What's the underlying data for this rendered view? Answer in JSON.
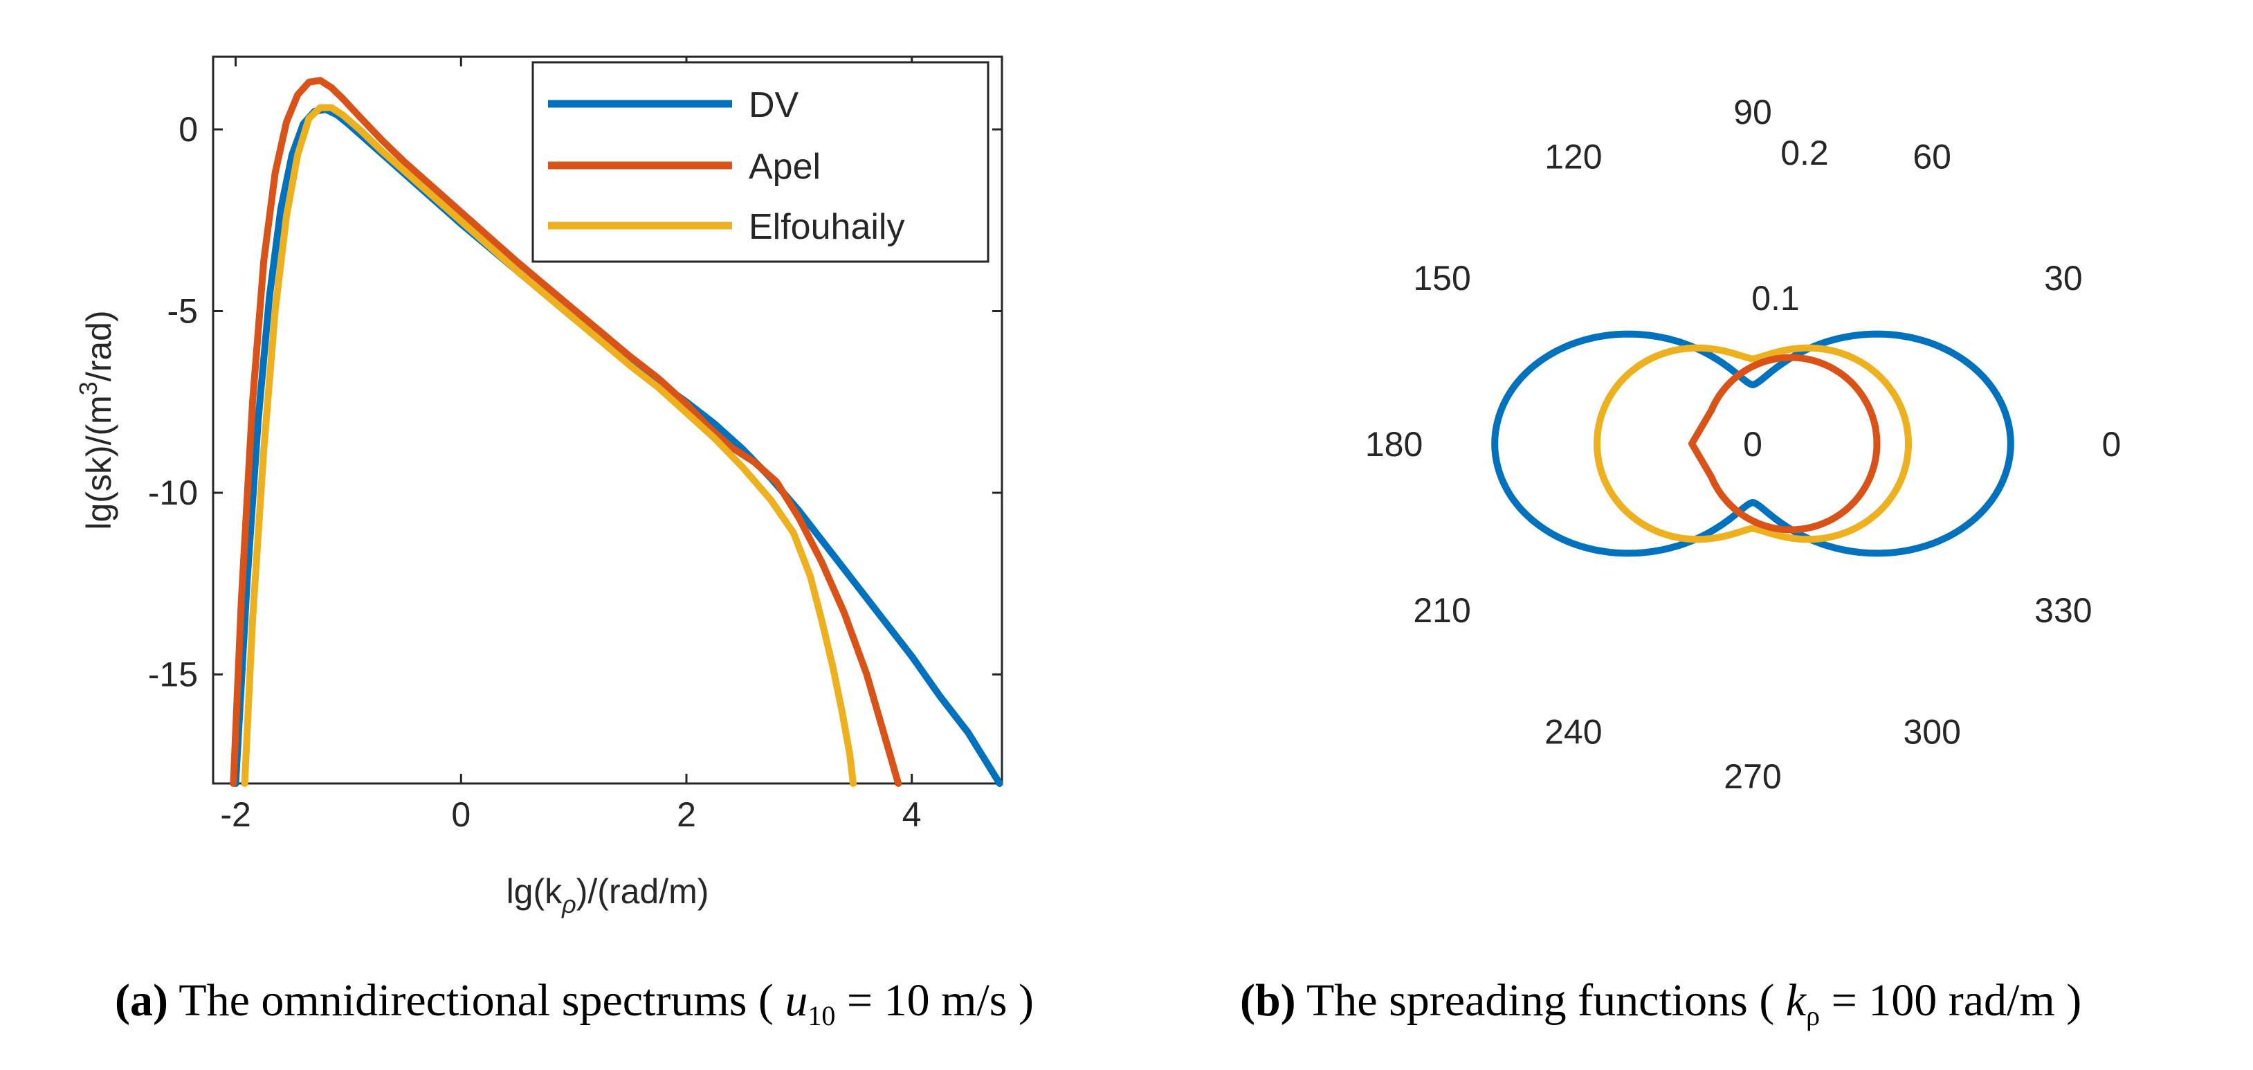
{
  "chart_data": [
    {
      "type": "line",
      "panel": "a",
      "xlabel": "lg(k_ρ)/(rad/m)",
      "xlabel_main": "lg(k",
      "xlabel_sub": "ρ",
      "xlabel_tail": ")/(rad/m)",
      "ylabel": "lg(sk)/(m^3/rad)",
      "ylabel_main": "lg(sk)/(m",
      "ylabel_sup": "3",
      "ylabel_tail": "/rad)",
      "xlim": [
        -2.2,
        4.8
      ],
      "ylim": [
        -18,
        2
      ],
      "xticks": [
        -2,
        0,
        2,
        4
      ],
      "xtick_labels": [
        "-2",
        "0",
        "2",
        "4"
      ],
      "yticks": [
        0,
        -5,
        -10,
        -15
      ],
      "ytick_labels": [
        "0",
        "-5",
        "-10",
        "-15"
      ],
      "grid": false,
      "legend": "top-right",
      "series": [
        {
          "name": "DV",
          "color": "#0072BD",
          "x": [
            -2.0,
            -1.9,
            -1.8,
            -1.7,
            -1.6,
            -1.5,
            -1.4,
            -1.3,
            -1.2,
            -1.1,
            -1.0,
            -0.8,
            -0.6,
            -0.4,
            -0.2,
            0.0,
            0.25,
            0.5,
            0.75,
            1.0,
            1.25,
            1.5,
            1.75,
            2.0,
            2.25,
            2.5,
            2.75,
            3.0,
            3.25,
            3.5,
            3.75,
            4.0,
            4.25,
            4.5,
            4.78
          ],
          "y": [
            -18,
            -12.5,
            -8.0,
            -4.6,
            -2.2,
            -0.7,
            0.15,
            0.5,
            0.55,
            0.4,
            0.15,
            -0.4,
            -0.95,
            -1.5,
            -2.05,
            -2.6,
            -3.25,
            -3.9,
            -4.55,
            -5.2,
            -5.8,
            -6.4,
            -6.95,
            -7.5,
            -8.1,
            -8.8,
            -9.6,
            -10.5,
            -11.5,
            -12.5,
            -13.5,
            -14.5,
            -15.6,
            -16.6,
            -18
          ]
        },
        {
          "name": "Apel",
          "color": "#D95319",
          "x": [
            -2.02,
            -1.95,
            -1.85,
            -1.75,
            -1.65,
            -1.55,
            -1.45,
            -1.35,
            -1.25,
            -1.15,
            -1.05,
            -0.9,
            -0.7,
            -0.5,
            -0.3,
            -0.1,
            0.1,
            0.3,
            0.5,
            0.75,
            1.0,
            1.25,
            1.5,
            1.75,
            2.0,
            2.2,
            2.4,
            2.6,
            2.8,
            3.0,
            3.2,
            3.4,
            3.6,
            3.75,
            3.88
          ],
          "y": [
            -18,
            -13.0,
            -7.5,
            -3.6,
            -1.2,
            0.2,
            0.95,
            1.3,
            1.35,
            1.15,
            0.85,
            0.35,
            -0.3,
            -0.9,
            -1.45,
            -2.0,
            -2.55,
            -3.1,
            -3.65,
            -4.3,
            -4.95,
            -5.6,
            -6.25,
            -6.85,
            -7.55,
            -8.2,
            -8.75,
            -9.15,
            -9.7,
            -10.7,
            -11.9,
            -13.3,
            -15.0,
            -16.6,
            -18
          ]
        },
        {
          "name": "Elfouhaily",
          "color": "#EDB120",
          "x": [
            -1.92,
            -1.85,
            -1.75,
            -1.65,
            -1.55,
            -1.45,
            -1.35,
            -1.25,
            -1.15,
            -1.05,
            -0.9,
            -0.7,
            -0.5,
            -0.3,
            -0.1,
            0.1,
            0.3,
            0.5,
            0.75,
            1.0,
            1.25,
            1.5,
            1.75,
            2.0,
            2.25,
            2.5,
            2.75,
            2.95,
            3.1,
            3.2,
            3.3,
            3.38,
            3.45,
            3.48
          ],
          "y": [
            -18,
            -13.5,
            -8.8,
            -5.0,
            -2.4,
            -0.7,
            0.3,
            0.6,
            0.6,
            0.4,
            0.0,
            -0.6,
            -1.15,
            -1.7,
            -2.25,
            -2.8,
            -3.35,
            -3.9,
            -4.55,
            -5.2,
            -5.85,
            -6.5,
            -7.1,
            -7.8,
            -8.5,
            -9.3,
            -10.2,
            -11.1,
            -12.3,
            -13.5,
            -14.8,
            -16.0,
            -17.2,
            -18
          ]
        }
      ],
      "caption": {
        "panel": "(a)",
        "text": "The omnidirectional spectrums",
        "open": "(",
        "var": "u",
        "sub": "10",
        "eq": "= 10 m/s",
        "close": ")"
      }
    },
    {
      "type": "polar",
      "panel": "b",
      "angle_labels": [
        {
          "deg": 90,
          "text": "90"
        },
        {
          "deg": 60,
          "text": "60"
        },
        {
          "deg": 120,
          "text": "120"
        },
        {
          "deg": 30,
          "text": "30"
        },
        {
          "deg": 150,
          "text": "150"
        },
        {
          "deg": 0,
          "text": "0"
        },
        {
          "deg": 180,
          "text": "180"
        },
        {
          "deg": 330,
          "text": "330"
        },
        {
          "deg": 210,
          "text": "210"
        },
        {
          "deg": 300,
          "text": "300"
        },
        {
          "deg": 240,
          "text": "240"
        },
        {
          "deg": 270,
          "text": "270"
        }
      ],
      "radial_ticks": [
        0,
        0.1,
        0.2
      ],
      "radial_tick_labels": [
        "0",
        "0.1",
        "0.2"
      ],
      "rlim": [
        0,
        0.24
      ],
      "series": [
        {
          "name": "DV",
          "color": "#0072BD",
          "model": "dv",
          "a0": 0.1,
          "a2": 0.115
        },
        {
          "name": "Apel",
          "color": "#D95319",
          "model": "cardioid_offset",
          "r0": 0.102,
          "theta_range_deg": [
            -157,
            157
          ]
        },
        {
          "name": "Elfouhaily",
          "color": "#EDB120",
          "model": "elf",
          "a0": 0.17,
          "a2": 0.04
        }
      ],
      "caption": {
        "panel": "(b)",
        "text": "The spreading functions",
        "open": "(",
        "var": "k",
        "sub": "ρ",
        "eq": "= 100 rad/m",
        "close": ")"
      }
    }
  ]
}
